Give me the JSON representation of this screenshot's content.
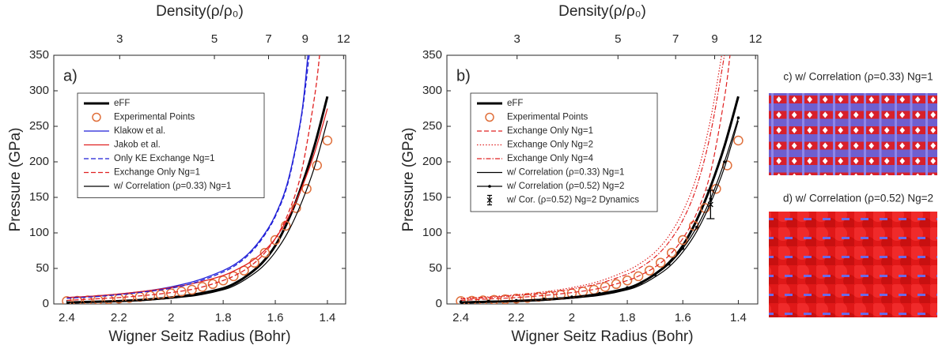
{
  "chart_data": [
    {
      "type": "line",
      "panel_label": "a)",
      "x_label": "Wigner Seitz Radius (Bohr)",
      "y_label": "Pressure (GPa)",
      "x2_label": "Density(ρ/ρ₀)",
      "xlim": [
        2.45,
        1.33
      ],
      "xticks": [
        2.4,
        2.2,
        2,
        1.8,
        1.6,
        1.4
      ],
      "ylim": [
        0,
        350
      ],
      "yticks": [
        0,
        50,
        100,
        150,
        200,
        250,
        300,
        350
      ],
      "x2lim": [
        2.2,
        12.2
      ],
      "x2ticks": [
        3,
        5,
        7,
        9,
        12
      ],
      "legend": "upper left",
      "series": [
        {
          "name": "eFF",
          "color": "#000000",
          "style": "solid",
          "width": 3,
          "marker": "none",
          "x": [
            2.4,
            2.3,
            2.2,
            2.1,
            2.0,
            1.9,
            1.8,
            1.75,
            1.7,
            1.65,
            1.6,
            1.55,
            1.5,
            1.45,
            1.4
          ],
          "values": [
            2,
            3,
            4,
            6,
            9,
            14,
            22,
            30,
            42,
            58,
            82,
            118,
            165,
            222,
            292
          ]
        },
        {
          "name": "Experimental Points",
          "color": "#e0703c",
          "style": "none",
          "width": 1.5,
          "marker": "circle",
          "x": [
            2.4,
            2.36,
            2.32,
            2.28,
            2.24,
            2.2,
            2.16,
            2.12,
            2.08,
            2.04,
            2.0,
            1.96,
            1.92,
            1.88,
            1.84,
            1.8,
            1.76,
            1.72,
            1.68,
            1.64,
            1.6,
            1.56,
            1.52,
            1.48,
            1.44,
            1.4
          ],
          "values": [
            4,
            4.5,
            5,
            5.7,
            6.5,
            7.5,
            8.5,
            10,
            11.5,
            13,
            15,
            17.5,
            20,
            24,
            28,
            33,
            39,
            47,
            58,
            72,
            90,
            110,
            135,
            162,
            195,
            230
          ]
        },
        {
          "name": "Klakow et al.",
          "color": "#1f1fd8",
          "style": "solid",
          "width": 1.3,
          "marker": "none",
          "x": [
            2.4,
            2.3,
            2.2,
            2.1,
            2.0,
            1.9,
            1.8,
            1.75,
            1.7,
            1.65,
            1.6,
            1.55,
            1.5,
            1.475
          ],
          "values": [
            9,
            11,
            14,
            18,
            24,
            33,
            47,
            57,
            72,
            94,
            125,
            175,
            265,
            350
          ]
        },
        {
          "name": "Jakob et al.",
          "color": "#e02020",
          "style": "solid",
          "width": 1.3,
          "marker": "none",
          "x": [
            2.4,
            2.3,
            2.2,
            2.1,
            2.0,
            1.9,
            1.8,
            1.75,
            1.7,
            1.65,
            1.6,
            1.55,
            1.5,
            1.45,
            1.4
          ],
          "values": [
            9,
            11,
            14,
            18,
            23,
            30,
            40,
            48,
            58,
            72,
            92,
            122,
            162,
            212,
            275
          ]
        },
        {
          "name": "Only KE Exchange Ng=1",
          "color": "#1f1fd8",
          "style": "dashed",
          "width": 1.3,
          "marker": "none",
          "x": [
            2.4,
            2.3,
            2.2,
            2.1,
            2.0,
            1.9,
            1.8,
            1.75,
            1.7,
            1.65,
            1.6,
            1.55,
            1.5,
            1.47
          ],
          "values": [
            8,
            10,
            13,
            17,
            22,
            31,
            45,
            55,
            70,
            92,
            123,
            172,
            262,
            350
          ]
        },
        {
          "name": "Exchange Only Ng=1",
          "color": "#e02020",
          "style": "dashed",
          "width": 1.3,
          "marker": "none",
          "x": [
            2.4,
            2.3,
            2.2,
            2.1,
            2.0,
            1.9,
            1.8,
            1.75,
            1.7,
            1.65,
            1.6,
            1.55,
            1.5,
            1.45,
            1.43
          ],
          "values": [
            5,
            7,
            9,
            12,
            16,
            22,
            33,
            41,
            52,
            68,
            92,
            128,
            185,
            290,
            350
          ]
        },
        {
          "name": "w/ Correlation (ρ=0.33) Ng=1",
          "color": "#000000",
          "style": "solid",
          "width": 1.2,
          "marker": "none",
          "x": [
            2.4,
            2.3,
            2.2,
            2.1,
            2.0,
            1.9,
            1.8,
            1.75,
            1.7,
            1.65,
            1.6,
            1.55,
            1.5,
            1.45,
            1.4
          ],
          "values": [
            2,
            2.5,
            3.5,
            5,
            8,
            12,
            20,
            27,
            38,
            52,
            73,
            102,
            142,
            192,
            258
          ]
        }
      ]
    },
    {
      "type": "line",
      "panel_label": "b)",
      "x_label": "Wigner Seitz Radius (Bohr)",
      "y_label": "Pressure (GPa)",
      "x2_label": "Density(ρ/ρ₀)",
      "xlim": [
        2.45,
        1.33
      ],
      "xticks": [
        2.4,
        2.2,
        2,
        1.8,
        1.6,
        1.4
      ],
      "ylim": [
        0,
        350
      ],
      "yticks": [
        0,
        50,
        100,
        150,
        200,
        250,
        300,
        350
      ],
      "x2lim": [
        2.2,
        12.2
      ],
      "x2ticks": [
        3,
        5,
        7,
        9,
        12
      ],
      "legend": "upper left",
      "series": [
        {
          "name": "eFF",
          "color": "#000000",
          "style": "solid",
          "width": 3,
          "marker": "none",
          "x": [
            2.4,
            2.3,
            2.2,
            2.1,
            2.0,
            1.9,
            1.8,
            1.75,
            1.7,
            1.65,
            1.6,
            1.55,
            1.5,
            1.45,
            1.4
          ],
          "values": [
            2,
            3,
            4,
            6,
            9,
            14,
            22,
            30,
            42,
            58,
            82,
            118,
            165,
            222,
            292
          ]
        },
        {
          "name": "Experimental Points",
          "color": "#e0703c",
          "style": "none",
          "width": 1.5,
          "marker": "circle",
          "x": [
            2.4,
            2.36,
            2.32,
            2.28,
            2.24,
            2.2,
            2.16,
            2.12,
            2.08,
            2.04,
            2.0,
            1.96,
            1.92,
            1.88,
            1.84,
            1.8,
            1.76,
            1.72,
            1.68,
            1.64,
            1.6,
            1.56,
            1.52,
            1.48,
            1.44,
            1.4
          ],
          "values": [
            4,
            4.5,
            5,
            5.7,
            6.5,
            7.5,
            8.5,
            10,
            11.5,
            13,
            15,
            17.5,
            20,
            24,
            28,
            33,
            39,
            47,
            58,
            72,
            90,
            110,
            135,
            162,
            195,
            230
          ]
        },
        {
          "name": "Exchange Only Ng=1",
          "color": "#e02020",
          "style": "dashed",
          "width": 1.2,
          "marker": "none",
          "x": [
            2.4,
            2.3,
            2.2,
            2.1,
            2.0,
            1.9,
            1.8,
            1.75,
            1.7,
            1.65,
            1.6,
            1.55,
            1.5,
            1.45,
            1.43
          ],
          "values": [
            5,
            7,
            9,
            12,
            16,
            22,
            33,
            41,
            52,
            68,
            92,
            128,
            185,
            290,
            350
          ]
        },
        {
          "name": "Exchange Only Ng=2",
          "color": "#e02020",
          "style": "dotted",
          "width": 1.2,
          "marker": "none",
          "x": [
            2.4,
            2.3,
            2.2,
            2.1,
            2.0,
            1.9,
            1.8,
            1.75,
            1.7,
            1.65,
            1.6,
            1.55,
            1.5,
            1.46
          ],
          "values": [
            8,
            10,
            13,
            17,
            23,
            32,
            47,
            58,
            73,
            96,
            130,
            180,
            260,
            350
          ]
        },
        {
          "name": "Exchange Only Ng=4",
          "color": "#e02020",
          "style": "dashdot",
          "width": 1.2,
          "marker": "none",
          "x": [
            2.4,
            2.3,
            2.2,
            2.1,
            2.0,
            1.9,
            1.8,
            1.75,
            1.7,
            1.65,
            1.6,
            1.55,
            1.5,
            1.45
          ],
          "values": [
            7,
            9,
            12,
            15,
            21,
            29,
            42,
            52,
            66,
            87,
            118,
            165,
            240,
            350
          ]
        },
        {
          "name": "w/ Correlation (ρ=0.33) Ng=1",
          "color": "#000000",
          "style": "solid",
          "width": 1.2,
          "marker": "none",
          "x": [
            2.4,
            2.3,
            2.2,
            2.1,
            2.0,
            1.9,
            1.8,
            1.75,
            1.7,
            1.65,
            1.6,
            1.55,
            1.5,
            1.45,
            1.4
          ],
          "values": [
            2,
            2.5,
            3.5,
            5,
            8,
            12,
            20,
            27,
            38,
            52,
            73,
            102,
            142,
            192,
            258
          ]
        },
        {
          "name": "w/ Correlation (ρ=0.52) Ng=2",
          "color": "#000000",
          "style": "solid",
          "width": 1.2,
          "marker": "dot",
          "x": [
            2.4,
            2.3,
            2.2,
            2.1,
            2.0,
            1.9,
            1.8,
            1.75,
            1.7,
            1.65,
            1.6,
            1.55,
            1.5,
            1.45,
            1.4
          ],
          "values": [
            3,
            4,
            5,
            7,
            10,
            15,
            23,
            30,
            41,
            56,
            78,
            108,
            148,
            200,
            262
          ]
        },
        {
          "name": "w/ Cor. (ρ=0.52) Ng=2 Dynamics",
          "color": "#000000",
          "style": "none",
          "width": 1.3,
          "marker": "errorbar",
          "x": [
            1.5
          ],
          "values": [
            140
          ],
          "errors": [
            20
          ]
        }
      ]
    }
  ],
  "images": [
    {
      "title": "c) w/ Correlation (ρ=0.33) Ng=1"
    },
    {
      "title": "d) w/ Correlation (ρ=0.52) Ng=2"
    }
  ]
}
